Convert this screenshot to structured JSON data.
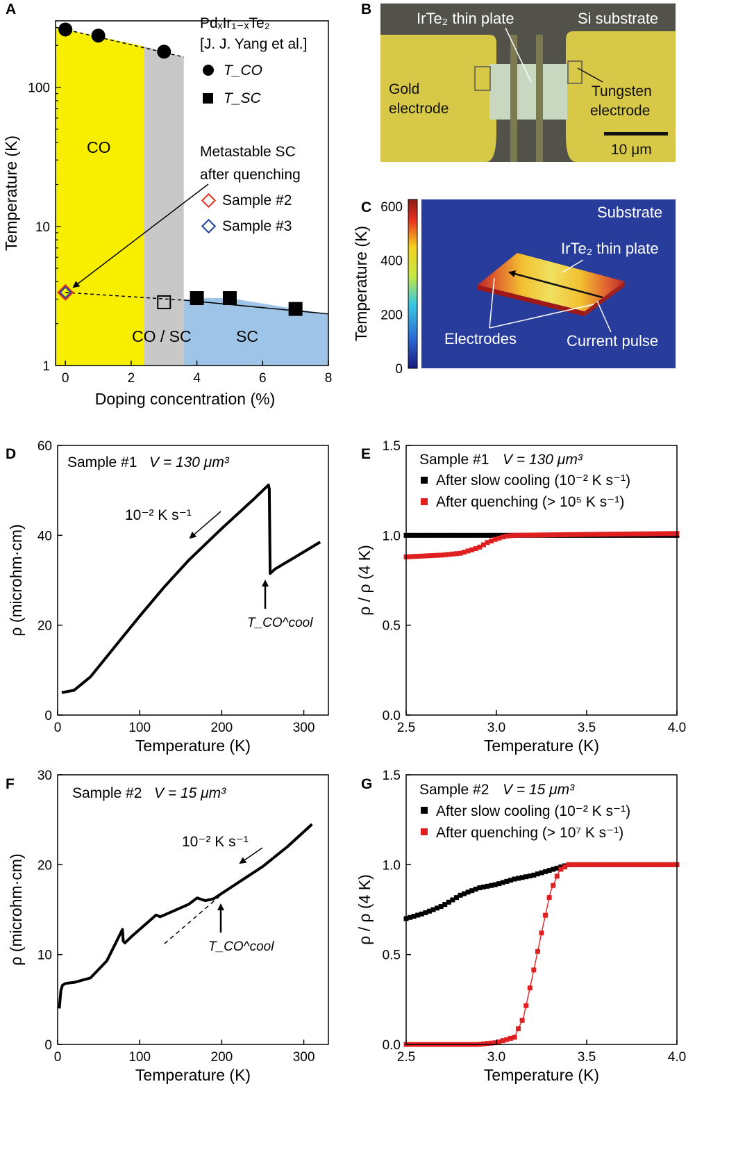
{
  "panels": {
    "A": "A",
    "B": "B",
    "C": "C",
    "D": "D",
    "E": "E",
    "F": "F",
    "G": "G"
  },
  "chart_data": [
    {
      "id": "A",
      "type": "scatter",
      "title": "",
      "xlabel": "Doping concentration (%)",
      "ylabel": "Temperature (K)",
      "xlim": [
        -0.3,
        8
      ],
      "ylim": [
        1,
        300
      ],
      "yscale": "log",
      "xticks": [
        "0",
        "2",
        "4",
        "6",
        "8"
      ],
      "yticks": [
        "1",
        "10",
        "100"
      ],
      "regions": [
        {
          "name": "CO",
          "x": [
            -0.3,
            2.4
          ],
          "color": "#f8ef00"
        },
        {
          "name": "CO / SC",
          "x": [
            2.4,
            3.6
          ],
          "color": "#c8c8c8"
        },
        {
          "name": "SC",
          "x": [
            3.6,
            8
          ],
          "color": "#9ec5e8"
        }
      ],
      "series": [
        {
          "name": "T_CO",
          "marker": "circle",
          "x": [
            0,
            1,
            3
          ],
          "y": [
            260,
            235,
            180
          ]
        },
        {
          "name": "T_SC",
          "marker": "square",
          "x": [
            3,
            4,
            5,
            7
          ],
          "y": [
            2.85,
            3.05,
            3.05,
            2.55
          ]
        },
        {
          "name": "Sample #2",
          "marker": "diamond",
          "color": "#e03020",
          "x": [
            0
          ],
          "y": [
            3.35
          ]
        },
        {
          "name": "Sample #3",
          "marker": "diamond",
          "color": "#2040a0",
          "x": [
            0
          ],
          "y": [
            3.35
          ]
        }
      ],
      "legend": {
        "title": "PdₓIr₁₋ₓTe₂",
        "ref": "[J. J. Yang et al.]",
        "tco": "T_CO",
        "tsc": "T_SC"
      },
      "annotations": {
        "co": "CO",
        "cosc": "CO / SC",
        "sc": "SC",
        "meta1": "Metastable SC",
        "meta2": "after quenching",
        "s2": "Sample #2",
        "s3": "Sample #3"
      }
    },
    {
      "id": "D",
      "type": "line",
      "title": "",
      "xlabel": "Temperature (K)",
      "ylabel": "ρ (microhm·cm)",
      "xlim": [
        0,
        330
      ],
      "ylim": [
        0,
        60
      ],
      "xticks": [
        "0",
        "100",
        "200",
        "300"
      ],
      "yticks": [
        "0",
        "20",
        "40",
        "60"
      ],
      "sample": "Sample #1",
      "volume": "V = 130 μm³",
      "rate": "10⁻² K s⁻¹",
      "tco": "T_CO^cool",
      "series": [
        {
          "name": "",
          "x": [
            5,
            20,
            40,
            60,
            80,
            100,
            130,
            160,
            200,
            240,
            257,
            258,
            259,
            265,
            290,
            320
          ],
          "y": [
            5,
            5.5,
            8.5,
            13,
            17.5,
            22,
            28.5,
            34.5,
            41.5,
            48.2,
            51.2,
            50.3,
            31.5,
            32.5,
            35.2,
            38.5
          ]
        }
      ]
    },
    {
      "id": "E",
      "type": "scatter",
      "title": "",
      "xlabel": "Temperature (K)",
      "ylabel": "ρ / ρ (4 K)",
      "xlim": [
        2.5,
        4.0
      ],
      "ylim": [
        0,
        1.5
      ],
      "xticks": [
        "2.5",
        "3.0",
        "3.5",
        "4.0"
      ],
      "yticks": [
        "0.0",
        "0.5",
        "1.0",
        "1.5"
      ],
      "sample": "Sample #1",
      "volume": "V = 130 μm³",
      "series": [
        {
          "name": "After slow cooling (10⁻² K s⁻¹)",
          "color": "#000000",
          "x": [
            2.5,
            4.0
          ],
          "y": [
            1.0,
            1.0
          ]
        },
        {
          "name": "After quenching (> 10⁵ K s⁻¹)",
          "color": "#e02020",
          "x": [
            2.5,
            2.7,
            2.8,
            2.9,
            2.95,
            3.0,
            3.05,
            3.1,
            3.5,
            4.0
          ],
          "y": [
            0.88,
            0.89,
            0.9,
            0.93,
            0.96,
            0.98,
            0.995,
            1.0,
            1.005,
            1.01
          ]
        }
      ]
    },
    {
      "id": "F",
      "type": "line",
      "title": "",
      "xlabel": "Temperature (K)",
      "ylabel": "ρ (microhm·cm)",
      "xlim": [
        0,
        330
      ],
      "ylim": [
        0,
        30
      ],
      "xticks": [
        "0",
        "100",
        "200",
        "300"
      ],
      "yticks": [
        "0",
        "10",
        "20",
        "30"
      ],
      "sample": "Sample #2",
      "volume": "V = 15 μm³",
      "rate": "10⁻² K s⁻¹",
      "tco": "T_CO^cool",
      "series": [
        {
          "name": "",
          "x": [
            2,
            4,
            6,
            10,
            20,
            40,
            60,
            79,
            80,
            82,
            90,
            110,
            120,
            125,
            140,
            160,
            170,
            180,
            190,
            200,
            220,
            250,
            280,
            310
          ],
          "y": [
            4,
            6,
            6.6,
            6.8,
            6.9,
            7.4,
            9.3,
            12.8,
            11.5,
            11.3,
            12,
            13.6,
            14.4,
            14.2,
            14.8,
            15.6,
            16.3,
            16.0,
            16.2,
            16.8,
            18.0,
            19.8,
            22.0,
            24.5
          ]
        }
      ]
    },
    {
      "id": "G",
      "type": "scatter",
      "title": "",
      "xlabel": "Temperature (K)",
      "ylabel": "ρ / ρ (4 K)",
      "xlim": [
        2.5,
        4.0
      ],
      "ylim": [
        0,
        1.5
      ],
      "xticks": [
        "2.5",
        "3.0",
        "3.5",
        "4.0"
      ],
      "yticks": [
        "0.0",
        "0.5",
        "1.0",
        "1.5"
      ],
      "sample": "Sample #2",
      "volume": "V = 15 μm³",
      "series": [
        {
          "name": "After slow cooling (10⁻² K s⁻¹)",
          "color": "#000000",
          "x": [
            2.5,
            2.6,
            2.7,
            2.8,
            2.9,
            3.0,
            3.1,
            3.2,
            3.3,
            3.4,
            3.5,
            4.0
          ],
          "y": [
            0.7,
            0.73,
            0.77,
            0.83,
            0.87,
            0.89,
            0.92,
            0.94,
            0.97,
            1.0,
            1.0,
            1.0
          ]
        },
        {
          "name": "After quenching (> 10⁷ K s⁻¹)",
          "color": "#e02020",
          "x": [
            2.5,
            2.9,
            3.0,
            3.1,
            3.15,
            3.2,
            3.25,
            3.3,
            3.35,
            3.4,
            3.5,
            4.0
          ],
          "y": [
            0.0,
            0.0,
            0.01,
            0.04,
            0.15,
            0.38,
            0.62,
            0.85,
            0.97,
            1.0,
            1.0,
            1.0
          ]
        }
      ]
    }
  ],
  "photo_b": {
    "plate": "IrTe₂ thin plate",
    "substrate": "Si substrate",
    "gold1": "Gold",
    "gold2": "electrode",
    "w1": "Tungsten",
    "w2": "electrode",
    "scale": "10 μm"
  },
  "sim_c": {
    "ylabel": "Temperature (K)",
    "cticks": [
      "0",
      "200",
      "400",
      "600"
    ],
    "substrate": "Substrate",
    "plate": "IrTe₂ thin plate",
    "electrodes": "Electrodes",
    "pulse": "Current pulse"
  }
}
